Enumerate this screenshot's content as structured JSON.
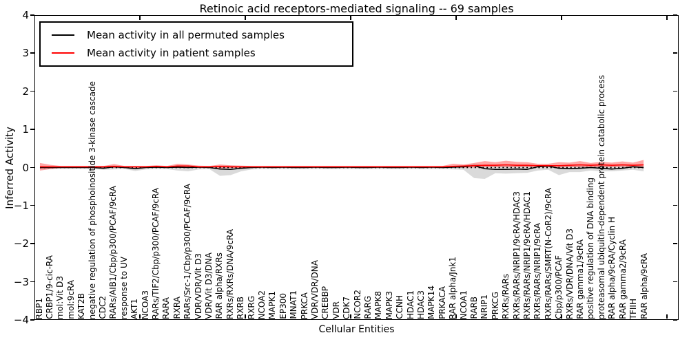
{
  "title": "Retinoic acid receptors-mediated signaling -- 69 samples",
  "axes": {
    "ylabel": "Inferred Activity",
    "xlabel": "Cellular Entities",
    "y_ticks": [
      {
        "label": "4",
        "value": 4
      },
      {
        "label": "3",
        "value": 3
      },
      {
        "label": "2",
        "value": 2
      },
      {
        "label": "1",
        "value": 1
      },
      {
        "label": "0",
        "value": 0
      },
      {
        "label": "−1",
        "value": -1
      },
      {
        "label": "−2",
        "value": -2
      },
      {
        "label": "−3",
        "value": -3
      },
      {
        "label": "−4",
        "value": -4
      }
    ]
  },
  "legend": {
    "items": [
      {
        "label": "Mean activity in all permuted samples",
        "color": "#000000"
      },
      {
        "label": "Mean activity in patient samples",
        "color": "#ff0000"
      }
    ]
  },
  "chart_data": {
    "type": "line",
    "title": "Retinoic acid receptors-mediated signaling -- 69 samples",
    "xlabel": "Cellular Entities",
    "ylabel": "Inferred Activity",
    "ylim": [
      -4,
      4
    ],
    "grid": false,
    "zero_line": true,
    "legend_position": "upper left",
    "categories": [
      "RBP1",
      "CRBP1/9-cic-RA",
      "mol:Vit D3",
      "mol:9cRA",
      "KAT2B",
      "negative regulation of phosphoinositide 3-kinase cascade",
      "CDC2",
      "RARs/AIB1/Cbp/p300/PCAF/9cRA",
      "response to UV",
      "AKT1",
      "NCOA3",
      "RARs/TIF2/Cbp/p300/PCAF/9cRA",
      "RARA",
      "RXRA",
      "RARs/Src-1/Cbp/p300/PCAF/9cRA",
      "VDR/VDR/Vit D3",
      "VDR/Vit D3/DNA",
      "RAR alpha/RXRs",
      "RXRs/RXRs/DNA/9cRA",
      "RXRB",
      "RXRG",
      "NCOA2",
      "MAPK1",
      "EP300",
      "MNAT1",
      "PRKCA",
      "VDR/VDR/DNA",
      "CREBBP",
      "VDR",
      "CDK7",
      "NCOR2",
      "RARG",
      "MAPK8",
      "MAPK3",
      "CCNH",
      "HDAC1",
      "HDAC3",
      "MAPK14",
      "PRKACA",
      "RAR alpha/Jnk1",
      "NCOA1",
      "RARB",
      "NRIP1",
      "PRKCG",
      "RXRs/RARs",
      "RXRs/RARs/NRIP1/9cRA/HDAC3",
      "RXRs/RARs/NRIP1/9cRA/HDAC1",
      "RXRs/RARs/NRIP1/9cRA",
      "RXRs/RARs/SMRT(N-CoR2)/9cRA",
      "Cbp/p300/PCAF",
      "RXRs/VDR/DNA/Vit D3",
      "RAR gamma1/9cRA",
      "positive regulation of DNA binding",
      "proteasomal ubiquitin-dependent protein catabolic process",
      "RAR alpha/9cRA/Cyclin H",
      "RAR gamma2/9cRA",
      "TFIIH",
      "RAR alpha/9cRA"
    ],
    "series": [
      {
        "name": "Mean activity in all permuted samples",
        "color": "#000000",
        "values": [
          0,
          0,
          0,
          0,
          0,
          0,
          -0.02,
          0.02,
          0,
          -0.03,
          0,
          0.01,
          0,
          0.01,
          0,
          0.01,
          0,
          -0.04,
          -0.05,
          -0.02,
          0,
          0.01,
          0,
          0.01,
          0,
          0,
          0.01,
          0,
          0,
          0.01,
          0,
          0,
          0.01,
          0,
          0,
          0.01,
          0,
          0.01,
          0,
          0.01,
          0.02,
          0.05,
          -0.03,
          -0.05,
          -0.05,
          -0.04,
          -0.05,
          0.02,
          0.04,
          -0.02,
          -0.03,
          -0.02,
          0,
          -0.02,
          -0.04,
          -0.02,
          0.02,
          0
        ]
      },
      {
        "name": "Mean activity in patient samples",
        "color": "#ff0000",
        "values": [
          0.02,
          0.02,
          0.02,
          0.02,
          0.02,
          0.02,
          0.02,
          0.03,
          0.02,
          0.02,
          0.02,
          0.03,
          0.02,
          0.04,
          0.04,
          0.02,
          0.02,
          0.03,
          0.02,
          0.02,
          0.02,
          0.02,
          0.02,
          0.02,
          0.02,
          0.02,
          0.02,
          0.02,
          0.02,
          0.02,
          0.02,
          0.02,
          0.02,
          0.02,
          0.02,
          0.02,
          0.02,
          0.02,
          0.02,
          0.03,
          0.04,
          0.05,
          0.06,
          0.06,
          0.07,
          0.06,
          0.06,
          0.05,
          0.05,
          0.05,
          0.06,
          0.07,
          0.06,
          0.07,
          0.06,
          0.07,
          0.06,
          0.07
        ]
      }
    ],
    "bands": [
      {
        "name": "permuted-samples-band",
        "color": "#9e9e9e",
        "opacity": 0.38,
        "upper": [
          0.04,
          0.03,
          0.03,
          0.03,
          0.03,
          0.03,
          0.04,
          0.05,
          0.03,
          0.04,
          0.03,
          0.04,
          0.03,
          0.05,
          0.04,
          0.03,
          0.03,
          0.05,
          0.05,
          0.04,
          0.03,
          0.03,
          0.03,
          0.03,
          0.03,
          0.03,
          0.03,
          0.03,
          0.03,
          0.03,
          0.03,
          0.03,
          0.03,
          0.03,
          0.03,
          0.03,
          0.03,
          0.03,
          0.03,
          0.04,
          0.05,
          0.1,
          0.06,
          0.05,
          0.05,
          0.05,
          0.05,
          0.05,
          0.07,
          0.05,
          0.05,
          0.05,
          0.05,
          0.05,
          0.05,
          0.06,
          0.06,
          0.05
        ],
        "lower": [
          -0.04,
          -0.04,
          -0.03,
          -0.03,
          -0.03,
          -0.04,
          -0.06,
          -0.05,
          -0.04,
          -0.09,
          -0.05,
          -0.04,
          -0.04,
          -0.08,
          -0.1,
          -0.05,
          -0.04,
          -0.22,
          -0.2,
          -0.1,
          -0.05,
          -0.04,
          -0.04,
          -0.04,
          -0.04,
          -0.04,
          -0.04,
          -0.04,
          -0.04,
          -0.04,
          -0.04,
          -0.04,
          -0.04,
          -0.04,
          -0.04,
          -0.04,
          -0.04,
          -0.04,
          -0.04,
          -0.05,
          -0.06,
          -0.28,
          -0.3,
          -0.15,
          -0.16,
          -0.15,
          -0.14,
          -0.08,
          -0.06,
          -0.2,
          -0.12,
          -0.12,
          -0.08,
          -0.1,
          -0.1,
          -0.08,
          -0.06,
          -0.1
        ]
      },
      {
        "name": "patient-samples-band",
        "color": "#ff2a2a",
        "opacity": 0.42,
        "upper": [
          0.12,
          0.07,
          0.04,
          0.04,
          0.04,
          0.04,
          0.04,
          0.09,
          0.04,
          0.04,
          0.04,
          0.06,
          0.04,
          0.1,
          0.08,
          0.05,
          0.04,
          0.08,
          0.06,
          0.05,
          0.04,
          0.04,
          0.04,
          0.04,
          0.04,
          0.04,
          0.04,
          0.04,
          0.04,
          0.04,
          0.04,
          0.04,
          0.04,
          0.04,
          0.04,
          0.04,
          0.04,
          0.04,
          0.04,
          0.1,
          0.08,
          0.12,
          0.17,
          0.14,
          0.18,
          0.15,
          0.14,
          0.1,
          0.1,
          0.14,
          0.13,
          0.17,
          0.12,
          0.15,
          0.13,
          0.16,
          0.13,
          0.2
        ],
        "lower": [
          -0.08,
          -0.04,
          -0.01,
          -0.01,
          -0.01,
          -0.01,
          -0.01,
          -0.01,
          -0.01,
          -0.01,
          -0.01,
          -0.01,
          -0.01,
          -0.01,
          -0.01,
          -0.01,
          -0.01,
          -0.02,
          -0.01,
          -0.01,
          -0.01,
          -0.01,
          -0.01,
          0,
          0,
          0,
          0,
          0,
          0,
          0,
          0,
          0,
          0,
          0,
          0,
          0,
          0,
          0,
          0,
          0,
          0,
          0,
          0.01,
          0.01,
          0.01,
          0.01,
          0.01,
          0.01,
          0.01,
          0,
          0.01,
          0.01,
          0.01,
          0.01,
          0.01,
          0.02,
          0.01,
          -0.02
        ]
      }
    ]
  }
}
